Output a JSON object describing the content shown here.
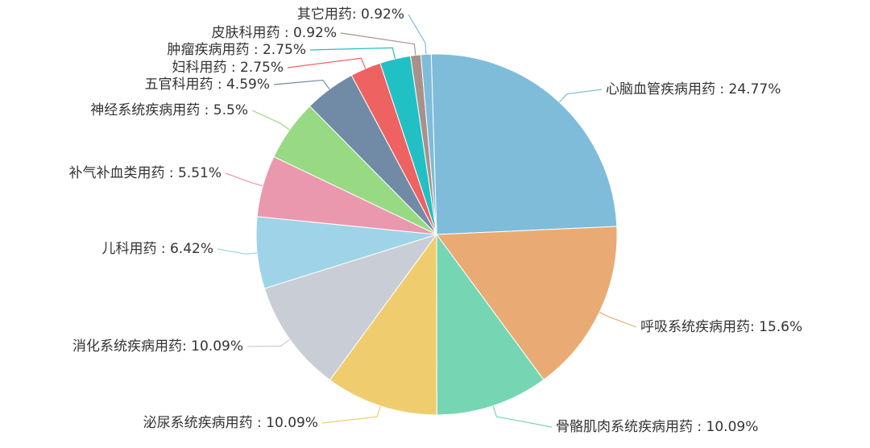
{
  "chart_data": {
    "type": "pie",
    "categories": [
      "心脑血管疾病用药 : 24.77%",
      "呼吸系统疾病用药: 15.6%",
      "骨骼肌肉系统疾病用药 : 10.09%",
      "泌尿系统疾病用药 : 10.09%",
      "消化系统疾病用药: 10.09%",
      "儿科用药 : 6.42%",
      "补气补血类用药 : 5.51%",
      "神经系统疾病用药 : 5.5%",
      "五官科用药 : 4.59%",
      "妇科用药 : 2.75%",
      "肿瘤疾病用药 : 2.75%",
      "皮肤科用药 : 0.92%",
      "其它用药: 0.92%"
    ],
    "values": [
      24.77,
      15.6,
      10.09,
      10.09,
      10.09,
      6.42,
      5.51,
      5.5,
      4.59,
      2.75,
      2.75,
      0.92,
      0.92
    ],
    "colors": [
      "#7fbcd9",
      "#e9ab73",
      "#76d6b4",
      "#efcd6e",
      "#c9ced6",
      "#9fd3e8",
      "#ea98ad",
      "#98d984",
      "#718ba7",
      "#ee6262",
      "#21c0c5",
      "#a6928b",
      "#7fbcd9"
    ]
  }
}
